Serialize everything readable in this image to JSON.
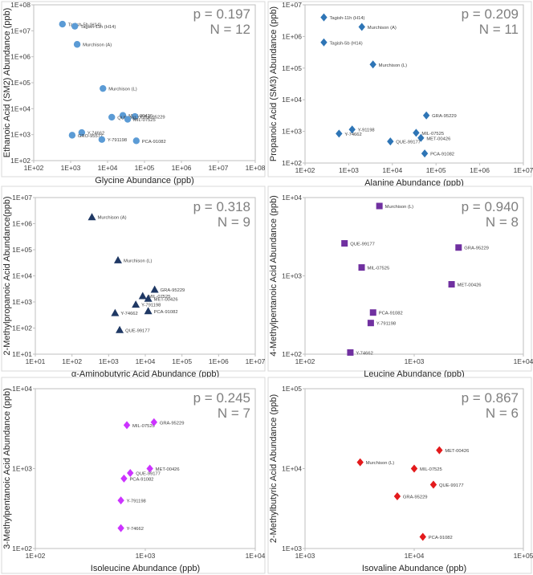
{
  "chart_data": [
    {
      "type": "scatter",
      "xlabel": "Glycine Abundance (ppb)",
      "ylabel": "Ethanoic Acid (SM2) Abundance (ppb)",
      "xlog": [
        2,
        8
      ],
      "ylog": [
        2,
        8
      ],
      "xticks": [
        "1E+02",
        "1E+03",
        "1E+04",
        "1E+05",
        "1E+06",
        "1E+07",
        "1E+08"
      ],
      "yticks": [
        "1E+02",
        "1E+03",
        "1E+04",
        "1E+05",
        "1E+06",
        "1E+07",
        "1E+08"
      ],
      "stats": {
        "p": "p = 0.197",
        "n": "N = 12"
      },
      "marker": "circle",
      "color": "#5b9bd5",
      "points": [
        {
          "label": "Tagish-5b (H14)",
          "x": 600,
          "y": 18000000
        },
        {
          "label": "Tagish-11h (H14)",
          "x": 1300,
          "y": 15000000
        },
        {
          "label": "Murchison (A)",
          "x": 1500,
          "y": 3000000
        },
        {
          "label": "Murchison (L)",
          "x": 7500,
          "y": 60000
        },
        {
          "label": "MET-00426",
          "x": 26000,
          "y": 5500
        },
        {
          "label": "GRA-95229",
          "x": 55000,
          "y": 5000
        },
        {
          "label": "QUE-99177",
          "x": 13000,
          "y": 4700
        },
        {
          "label": "MIL-07525",
          "x": 35000,
          "y": 3900
        },
        {
          "label": "Y-74662",
          "x": 2000,
          "y": 1200
        },
        {
          "label": "GRO-95577",
          "x": 1100,
          "y": 950
        },
        {
          "label": "Y-791198",
          "x": 7000,
          "y": 650
        },
        {
          "label": "PCA-91082",
          "x": 60000,
          "y": 580
        }
      ]
    },
    {
      "type": "scatter",
      "xlabel": "Alanine Abundance (ppb)",
      "ylabel": "Propanoic Acid (SM3) Abundance (ppb)",
      "xlog": [
        2,
        7
      ],
      "ylog": [
        2,
        7
      ],
      "xticks": [
        "1E+02",
        "1E+03",
        "1E+04",
        "1E+05",
        "1E+06",
        "1E+07"
      ],
      "yticks": [
        "1E+02",
        "1E+03",
        "1E+04",
        "1E+05",
        "1E+06",
        "1E+07"
      ],
      "stats": {
        "p": "p = 0.209",
        "n": "N = 11"
      },
      "marker": "diamond",
      "color": "#2e75b6",
      "points": [
        {
          "label": "Tagish-11h (H14)",
          "x": 270,
          "y": 4000000
        },
        {
          "label": "Murchison (A)",
          "x": 2000,
          "y": 2000000
        },
        {
          "label": "Tagish-5b (H14)",
          "x": 270,
          "y": 650000
        },
        {
          "label": "Murchison (L)",
          "x": 3600,
          "y": 130000
        },
        {
          "label": "GRA-95229",
          "x": 60000,
          "y": 3200
        },
        {
          "label": "Y-91198",
          "x": 1200,
          "y": 1150
        },
        {
          "label": "Y-74662",
          "x": 600,
          "y": 850
        },
        {
          "label": "MIL-07525",
          "x": 35000,
          "y": 900
        },
        {
          "label": "MET-00426",
          "x": 45000,
          "y": 620
        },
        {
          "label": "QUE-99177",
          "x": 9000,
          "y": 480
        },
        {
          "label": "PCA-91082",
          "x": 55000,
          "y": 200
        }
      ]
    },
    {
      "type": "scatter",
      "xlabel": "α-Aminobutyric Acid Abundance (ppb)",
      "ylabel": "2-Methylpropanoic Acid Abundance(ppb)",
      "xlog": [
        1,
        7
      ],
      "ylog": [
        1,
        7
      ],
      "xticks": [
        "1E+01",
        "1E+02",
        "1E+03",
        "1E+04",
        "1E+05",
        "1E+06",
        "1E+07"
      ],
      "yticks": [
        "1E+01",
        "1E+02",
        "1E+03",
        "1E+04",
        "1E+05",
        "1E+06",
        "1E+07"
      ],
      "stats": {
        "p": "p = 0.318",
        "n": "N = 9"
      },
      "marker": "triangle",
      "color": "#1f3864",
      "points": [
        {
          "label": "Murchison (A)",
          "x": 350,
          "y": 1800000
        },
        {
          "label": "Murchison (L)",
          "x": 1800,
          "y": 40000
        },
        {
          "label": "GRA-95229",
          "x": 18000,
          "y": 3000
        },
        {
          "label": "MIL-07525",
          "x": 8500,
          "y": 1700
        },
        {
          "label": "MET-00426",
          "x": 12000,
          "y": 1350
        },
        {
          "label": "Y-791198",
          "x": 5500,
          "y": 800
        },
        {
          "label": "PCA-91082",
          "x": 12000,
          "y": 450
        },
        {
          "label": "Y-74662",
          "x": 1500,
          "y": 380
        },
        {
          "label": "QUE-99177",
          "x": 2000,
          "y": 85
        }
      ]
    },
    {
      "type": "scatter",
      "xlabel": "Leucine Abundance (ppb)",
      "ylabel": "4-Methylpentanoic Acid Abundance (ppb)",
      "xlog": [
        2,
        4
      ],
      "ylog": [
        2,
        4
      ],
      "xticks": [
        "1E+02",
        "1E+03",
        "1E+04"
      ],
      "yticks": [
        "1E+02",
        "1E+03",
        "1E+04"
      ],
      "stats": {
        "p": "p = 0.940",
        "n": "N = 8"
      },
      "marker": "square",
      "color": "#7030a0",
      "points": [
        {
          "label": "Murchison (L)",
          "x": 480,
          "y": 7800
        },
        {
          "label": "QUE-99177",
          "x": 230,
          "y": 2600
        },
        {
          "label": "GRA-95229",
          "x": 2550,
          "y": 2300
        },
        {
          "label": "MIL-07525",
          "x": 330,
          "y": 1280
        },
        {
          "label": "MET-00426",
          "x": 2200,
          "y": 780
        },
        {
          "label": "PCA-91082",
          "x": 420,
          "y": 340
        },
        {
          "label": "Y-791198",
          "x": 400,
          "y": 250
        },
        {
          "label": "Y-74662",
          "x": 260,
          "y": 105
        }
      ]
    },
    {
      "type": "scatter",
      "xlabel": "Isoleucine Abundance (ppb)",
      "ylabel": "3-Methylpentanoic Acid Abundance (ppb)",
      "xlog": [
        2,
        4
      ],
      "ylog": [
        2,
        4
      ],
      "xticks": [
        "1E+02",
        "1E+03",
        "1E+04"
      ],
      "yticks": [
        "1E+02",
        "1E+03",
        "1E+04"
      ],
      "stats": {
        "p": "p = 0.245",
        "n": "N = 7"
      },
      "marker": "diamond",
      "color": "#cc33ff",
      "points": [
        {
          "label": "MIL-07525",
          "x": 680,
          "y": 3500
        },
        {
          "label": "GRA-95229",
          "x": 1200,
          "y": 3800
        },
        {
          "label": "QUE-99177",
          "x": 730,
          "y": 880
        },
        {
          "label": "MET-00426",
          "x": 1100,
          "y": 1000
        },
        {
          "label": "PCA-91082",
          "x": 640,
          "y": 750
        },
        {
          "label": "Y-791198",
          "x": 600,
          "y": 400
        },
        {
          "label": "Y-74662",
          "x": 600,
          "y": 180
        }
      ]
    },
    {
      "type": "scatter",
      "xlabel": "Isovaline Abundance (ppb)",
      "ylabel": "2-Methylbutyric Acid Abundance (ppb)",
      "xlog": [
        3,
        5
      ],
      "ylog": [
        3,
        5
      ],
      "xticks": [
        "1E+03",
        "1E+04",
        "1E+05"
      ],
      "yticks": [
        "1E+03",
        "1E+04",
        "1E+05"
      ],
      "stats": {
        "p": "p = 0.867",
        "n": "N = 6"
      },
      "marker": "diamond",
      "color": "#e31a1c",
      "points": [
        {
          "label": "MET-00426",
          "x": 17000,
          "y": 17000
        },
        {
          "label": "Murchison (L)",
          "x": 3200,
          "y": 12000
        },
        {
          "label": "MIL-07525",
          "x": 10000,
          "y": 10000
        },
        {
          "label": "QUE-99177",
          "x": 15000,
          "y": 6300
        },
        {
          "label": "GRA-95229",
          "x": 7000,
          "y": 4500
        },
        {
          "label": "PCA-91082",
          "x": 12000,
          "y": 1400
        }
      ]
    }
  ]
}
